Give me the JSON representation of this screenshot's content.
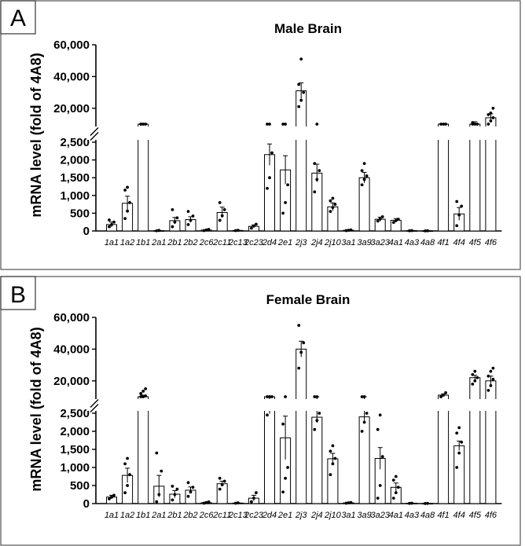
{
  "chart_data": [
    {
      "type": "bar",
      "panel_label": "A",
      "title": "Male Brain",
      "ylabel": "mRNA level (fold of 4A8)",
      "lower_ticks": [
        "0",
        "500",
        "1,000",
        "1,500",
        "2,000",
        "2,500"
      ],
      "upper_ticks": [
        "20,000",
        "40,000",
        "60,000"
      ],
      "broken_axis": {
        "lower_range": [
          0,
          2500
        ],
        "upper_range": [
          10000,
          60000
        ]
      },
      "categories": [
        "1a1",
        "1a2",
        "1b1",
        "2a1",
        "2b1",
        "2b2",
        "2c6",
        "2c11",
        "2c13",
        "2c23",
        "2d4",
        "2e1",
        "2j3",
        "2j4",
        "2j10",
        "3a1",
        "3a9",
        "3a23",
        "4a1",
        "4a3",
        "4a8",
        "4f1",
        "4f4",
        "4f5",
        "4f6"
      ],
      "values": [
        180,
        780,
        5500,
        10,
        290,
        320,
        25,
        520,
        15,
        130,
        2150,
        1720,
        31000,
        1630,
        680,
        20,
        1500,
        330,
        300,
        10,
        5,
        4500,
        480,
        9000,
        14000
      ],
      "errors": [
        70,
        200,
        800,
        5,
        90,
        80,
        10,
        150,
        5,
        40,
        300,
        400,
        5000,
        250,
        110,
        10,
        150,
        60,
        50,
        5,
        5,
        500,
        180,
        2500,
        2500
      ],
      "points": [
        [
          120,
          180,
          250,
          310
        ],
        [
          350,
          560,
          800,
          1150,
          1230
        ],
        [
          4800,
          5300,
          5800,
          6500
        ],
        [
          5,
          15
        ],
        [
          120,
          250,
          370,
          600
        ],
        [
          180,
          300,
          420,
          550
        ],
        [
          10,
          30,
          45
        ],
        [
          300,
          430,
          600,
          800
        ],
        [
          10,
          20
        ],
        [
          80,
          140,
          190
        ],
        [
          1200,
          1500,
          2200,
          2550,
          2570
        ],
        [
          500,
          800,
          1300,
          2600,
          2600
        ],
        [
          21000,
          25000,
          30000,
          35000,
          51000
        ],
        [
          1100,
          1450,
          1700,
          1900,
          2600
        ],
        [
          550,
          660,
          750,
          850,
          920
        ],
        [
          10,
          20,
          30
        ],
        [
          1300,
          1450,
          1550,
          1700,
          1900
        ],
        [
          280,
          340,
          400
        ],
        [
          240,
          290,
          330
        ],
        [
          5,
          10
        ],
        [
          2,
          5
        ],
        [
          4200,
          4500,
          4800
        ],
        [
          150,
          450,
          700,
          830
        ],
        [
          6000,
          8000,
          9800,
          11000
        ],
        [
          10000,
          12000,
          14000,
          16000,
          17000,
          20000
        ]
      ]
    },
    {
      "type": "bar",
      "panel_label": "B",
      "title": "Female Brain",
      "ylabel": "mRNA level (fold of 4A8)",
      "lower_ticks": [
        "0",
        "500",
        "1,000",
        "1,500",
        "2,000",
        "2,500"
      ],
      "upper_ticks": [
        "20,000",
        "40,000",
        "60,000"
      ],
      "broken_axis": {
        "lower_range": [
          0,
          2500
        ],
        "upper_range": [
          10000,
          60000
        ]
      },
      "categories": [
        "1a1",
        "1a2",
        "1b1",
        "2a1",
        "2b1",
        "2b2",
        "2c6",
        "2c11",
        "2c13",
        "2c23",
        "2d4",
        "2e1",
        "2j3",
        "2j4",
        "2j10",
        "3a1",
        "3a9",
        "3a23",
        "4a1",
        "4a3",
        "4a8",
        "4f1",
        "4f4",
        "4f5",
        "4f6"
      ],
      "values": [
        180,
        780,
        10000,
        480,
        260,
        370,
        25,
        550,
        15,
        150,
        2550,
        1820,
        40000,
        2390,
        1240,
        20,
        2400,
        1250,
        450,
        10,
        5,
        11000,
        1600,
        22000,
        20000
      ],
      "errors": [
        50,
        200,
        1000,
        300,
        100,
        90,
        10,
        70,
        5,
        80,
        60,
        600,
        5000,
        150,
        150,
        10,
        150,
        300,
        120,
        5,
        5,
        800,
        130,
        1500,
        3000
      ],
      "points": [
        [
          130,
          180,
          230
        ],
        [
          300,
          500,
          800,
          1100,
          1250
        ],
        [
          8000,
          9500,
          10500,
          12000,
          13500,
          15000
        ],
        [
          50,
          250,
          900,
          1400
        ],
        [
          100,
          250,
          400,
          480
        ],
        [
          200,
          320,
          450,
          580
        ],
        [
          10,
          30,
          45
        ],
        [
          400,
          520,
          620,
          700
        ],
        [
          10,
          20
        ],
        [
          50,
          150,
          300
        ],
        [
          2450,
          2520,
          2570,
          2600,
          2610
        ],
        [
          320,
          700,
          1000,
          2200,
          2600
        ],
        [
          28000,
          38000,
          44000,
          55000
        ],
        [
          2050,
          2300,
          2500,
          2600,
          2620
        ],
        [
          800,
          1100,
          1250,
          1450,
          1600
        ],
        [
          10,
          20,
          30
        ],
        [
          2000,
          2250,
          2500,
          2620,
          2640
        ],
        [
          150,
          500,
          1300,
          2050,
          2450
        ],
        [
          150,
          300,
          450,
          650,
          750
        ],
        [
          5,
          10
        ],
        [
          2,
          5
        ],
        [
          10000,
          11000,
          12500
        ],
        [
          1000,
          1400,
          1700,
          1950,
          2100
        ],
        [
          18000,
          20000,
          22000,
          24000,
          26000
        ],
        [
          14000,
          17000,
          21000,
          23000,
          26000,
          28000
        ]
      ]
    }
  ]
}
